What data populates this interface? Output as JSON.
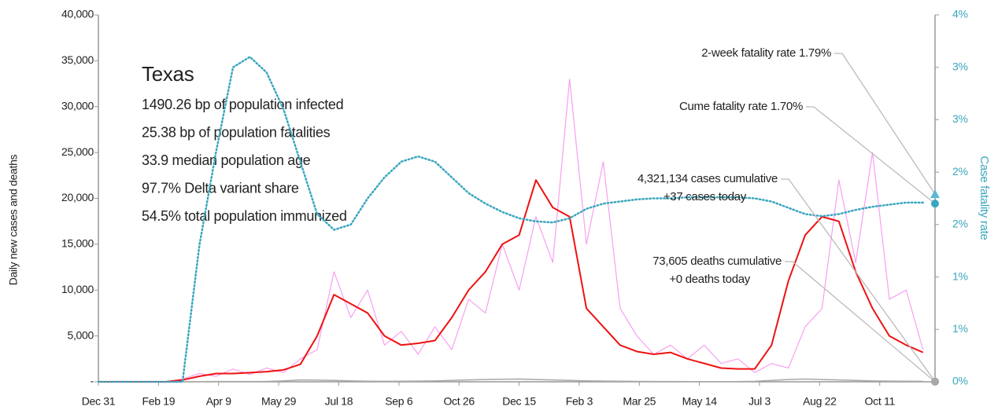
{
  "chart_data": {
    "type": "line",
    "title": "Texas",
    "info": [
      "1490.26 bp of population infected",
      "25.38 bp of population fatalities",
      "33.9 median population age",
      "97.7% Delta variant share",
      "54.5% total population immunized"
    ],
    "y_label": "Daily new cases and deaths",
    "y2_label": "Case fatality rate",
    "x": [
      0,
      14,
      28,
      42,
      56,
      70,
      84,
      98,
      112,
      126,
      140,
      154,
      168,
      182,
      196,
      210,
      224,
      238,
      252,
      266,
      280,
      294,
      308,
      322,
      336,
      350,
      364,
      378,
      392,
      406,
      420,
      434,
      448,
      462,
      476,
      490,
      504,
      518,
      532,
      546,
      560,
      574,
      588,
      602,
      616,
      630,
      644,
      658,
      672,
      686
    ],
    "xlim": [
      0,
      696
    ],
    "xticks": [
      {
        "value": 0,
        "label": "Dec 31"
      },
      {
        "value": 50,
        "label": "Feb 19"
      },
      {
        "value": 100,
        "label": "Apr 9"
      },
      {
        "value": 150,
        "label": "May 29"
      },
      {
        "value": 200,
        "label": "Jul 18"
      },
      {
        "value": 250,
        "label": "Sep 6"
      },
      {
        "value": 300,
        "label": "Oct 26"
      },
      {
        "value": 350,
        "label": "Dec 15"
      },
      {
        "value": 400,
        "label": "Feb 3"
      },
      {
        "value": 450,
        "label": "Mar 25"
      },
      {
        "value": 500,
        "label": "May 14"
      },
      {
        "value": 550,
        "label": "Jul 3"
      },
      {
        "value": 600,
        "label": "Aug 22"
      },
      {
        "value": 650,
        "label": "Oct 11"
      }
    ],
    "ylim": [
      0,
      40000
    ],
    "yticks": [
      {
        "value": 0,
        "label": "-"
      },
      {
        "value": 5000,
        "label": "5,000"
      },
      {
        "value": 10000,
        "label": "10,000"
      },
      {
        "value": 15000,
        "label": "15,000"
      },
      {
        "value": 20000,
        "label": "20,000"
      },
      {
        "value": 25000,
        "label": "25,000"
      },
      {
        "value": 30000,
        "label": "30,000"
      },
      {
        "value": 35000,
        "label": "35,000"
      },
      {
        "value": 40000,
        "label": "40,000"
      }
    ],
    "y2lim": [
      0,
      3.5
    ],
    "y2ticks": [
      {
        "value": 0,
        "label": "0%"
      },
      {
        "value": 0.5,
        "label": "1%"
      },
      {
        "value": 1,
        "label": "1%"
      },
      {
        "value": 1.5,
        "label": "2%"
      },
      {
        "value": 2,
        "label": "2%"
      },
      {
        "value": 2.5,
        "label": "3%"
      },
      {
        "value": 3,
        "label": "3%"
      },
      {
        "value": 3.5,
        "label": "4%"
      }
    ],
    "series": [
      {
        "color": "#f7a0f0",
        "width": 1.2,
        "values": [
          0,
          0,
          0,
          0,
          0,
          300,
          900,
          600,
          1400,
          800,
          1500,
          1000,
          2500,
          3500,
          12000,
          7000,
          10000,
          4000,
          5500,
          3000,
          6000,
          3500,
          9000,
          7500,
          15000,
          10000,
          18000,
          13000,
          33000,
          15000,
          24000,
          8000,
          5000,
          3000,
          4000,
          2500,
          4000,
          2000,
          2500,
          1000,
          2000,
          1500,
          6000,
          8000,
          22000,
          13000,
          25000,
          9000,
          10000,
          3500
        ]
      },
      {
        "color": "#a8a8a8",
        "width": 1.5,
        "values": [
          0,
          0,
          0,
          0,
          0,
          0,
          20,
          30,
          30,
          30,
          40,
          100,
          200,
          180,
          150,
          100,
          60,
          50,
          60,
          80,
          100,
          150,
          200,
          250,
          280,
          300,
          250,
          200,
          150,
          100,
          80,
          60,
          40,
          30,
          30,
          20,
          20,
          20,
          20,
          50,
          150,
          250,
          300,
          250,
          200,
          150,
          100,
          80,
          60,
          50
        ]
      },
      {
        "color": "#ee1111",
        "width": 2,
        "values": [
          0,
          0,
          0,
          0,
          0,
          200,
          600,
          900,
          900,
          1000,
          1100,
          1300,
          1900,
          5000,
          9500,
          8500,
          7500,
          5000,
          4000,
          4200,
          4500,
          7000,
          10000,
          12000,
          15000,
          16000,
          22000,
          19000,
          18000,
          8000,
          6000,
          4000,
          3300,
          3000,
          3200,
          2500,
          2000,
          1500,
          1400,
          1400,
          4000,
          11000,
          16000,
          18000,
          17500,
          12000,
          8000,
          5000,
          4000,
          3200
        ]
      },
      {
        "color": "#3aa6bf",
        "width": 2.5,
        "dotted": true,
        "axis": "y2",
        "values": [
          0,
          0,
          0,
          0,
          0,
          0,
          1.3,
          2.2,
          3.0,
          3.1,
          2.95,
          2.6,
          2.1,
          1.6,
          1.45,
          1.5,
          1.75,
          1.95,
          2.1,
          2.15,
          2.1,
          1.95,
          1.8,
          1.7,
          1.62,
          1.56,
          1.53,
          1.52,
          1.56,
          1.65,
          1.7,
          1.72,
          1.74,
          1.75,
          1.75,
          1.76,
          1.76,
          1.76,
          1.76,
          1.75,
          1.72,
          1.66,
          1.6,
          1.58,
          1.6,
          1.64,
          1.67,
          1.69,
          1.71,
          1.71
        ]
      }
    ],
    "annotations": [
      {
        "lines": [
          "2-week fatality rate 1.79%"
        ],
        "value": 1.79,
        "axis": "y2",
        "marker": "triangle"
      },
      {
        "lines": [
          "Cume fatality rate 1.70%"
        ],
        "value": 1.7,
        "axis": "y2",
        "marker": "circle"
      },
      {
        "lines": [
          "4,321,134 cases cumulative",
          "+37 cases today"
        ],
        "value": 37,
        "marker": "circle"
      },
      {
        "lines": [
          "73,605 deaths cumulative",
          "+0 deaths today"
        ],
        "value": 0,
        "marker": "circle"
      }
    ]
  }
}
